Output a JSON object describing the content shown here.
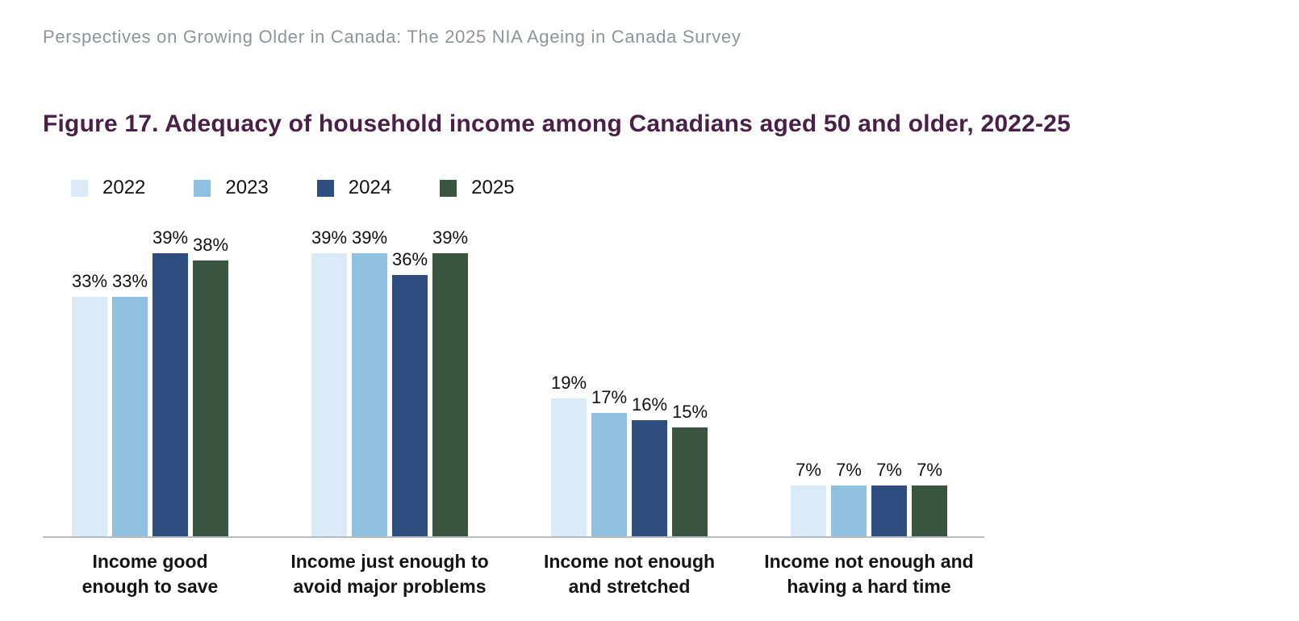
{
  "header": {
    "text": "Perspectives on Growing Older in Canada: The 2025 NIA Ageing in Canada Survey"
  },
  "figure": {
    "title": "Figure 17. Adequacy of household income among Canadians aged 50 and older, 2022-25"
  },
  "colors": {
    "title_text": "#4a2049",
    "header_text": "#8d949c",
    "axis_line": "#b9bcbe",
    "value_label_text": "#111111",
    "category_label_text": "#151515"
  },
  "chart_data": {
    "type": "bar",
    "title": "Figure 17. Adequacy of household income among Canadians aged 50 and older, 2022-25",
    "categories": [
      "Income good\nenough to save",
      "Income just enough to\navoid major problems",
      "Income not enough\nand stretched",
      "Income not enough and\nhaving a hard time"
    ],
    "series": [
      {
        "name": "2022",
        "color": "#daeaf6",
        "values": [
          33,
          39,
          19,
          7
        ]
      },
      {
        "name": "2023",
        "color": "#8fc0e0",
        "values": [
          33,
          39,
          17,
          7
        ]
      },
      {
        "name": "2024",
        "color": "#2d4e7f",
        "values": [
          39,
          36,
          16,
          7
        ]
      },
      {
        "name": "2025",
        "color": "#3b5640",
        "values": [
          38,
          39,
          15,
          7
        ]
      }
    ],
    "value_suffix": "%",
    "data_labels": true,
    "xlabel": "",
    "ylabel": "",
    "ylim": [
      0,
      47
    ],
    "grid": false,
    "y_axis_visible": false,
    "legend_position": "top-left"
  }
}
